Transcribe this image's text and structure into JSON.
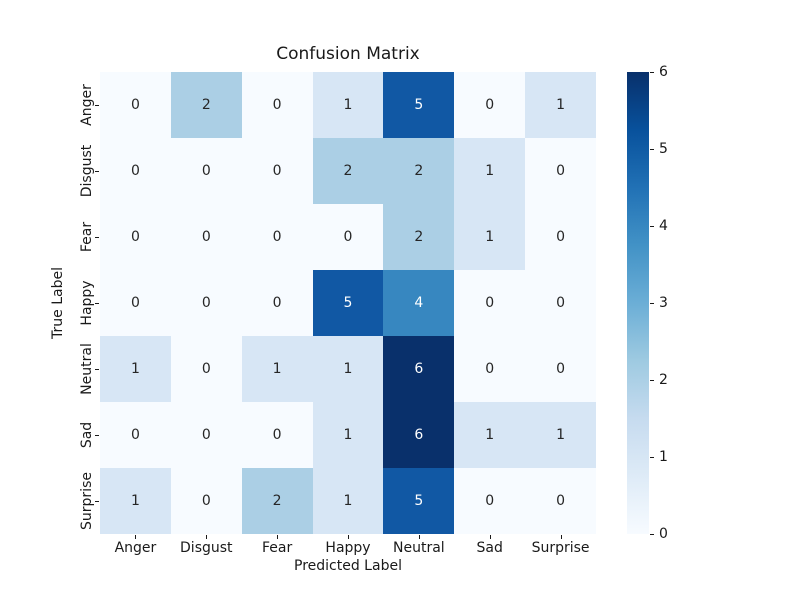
{
  "chart_data": {
    "type": "heatmap",
    "title": "Confusion Matrix",
    "xlabel": "Predicted Label",
    "ylabel": "True Label",
    "x_categories": [
      "Anger",
      "Disgust",
      "Fear",
      "Happy",
      "Neutral",
      "Sad",
      "Surprise"
    ],
    "y_categories": [
      "Anger",
      "Disgust",
      "Fear",
      "Happy",
      "Neutral",
      "Sad",
      "Surprise"
    ],
    "values": [
      [
        0,
        2,
        0,
        1,
        5,
        0,
        1
      ],
      [
        0,
        0,
        0,
        2,
        2,
        1,
        0
      ],
      [
        0,
        0,
        0,
        0,
        2,
        1,
        0
      ],
      [
        0,
        0,
        0,
        5,
        4,
        0,
        0
      ],
      [
        1,
        0,
        1,
        1,
        6,
        0,
        0
      ],
      [
        0,
        0,
        0,
        1,
        6,
        1,
        1
      ],
      [
        1,
        0,
        2,
        1,
        5,
        0,
        0
      ]
    ],
    "colormap": "Blues",
    "vmin": 0,
    "vmax": 6,
    "colorbar_ticks": [
      0,
      1,
      2,
      3,
      4,
      5,
      6
    ],
    "colorbar_position": "right",
    "grid": false,
    "value_colors": {
      "0": "#f7fbff",
      "1": "#d7e6f5",
      "2": "#abcfe5",
      "3": "#6baed6",
      "4": "#3787c0",
      "5": "#1158a4",
      "6": "#09306b"
    },
    "annotation_dark_color": "#262626",
    "annotation_light_color": "#ffffff",
    "light_text_threshold": 4,
    "colorbar_gradient": [
      "#f7fbff",
      "#deebf7",
      "#c6dbef",
      "#9ecae1",
      "#6baed6",
      "#4292c6",
      "#2171b5",
      "#08519c",
      "#08306b"
    ]
  }
}
